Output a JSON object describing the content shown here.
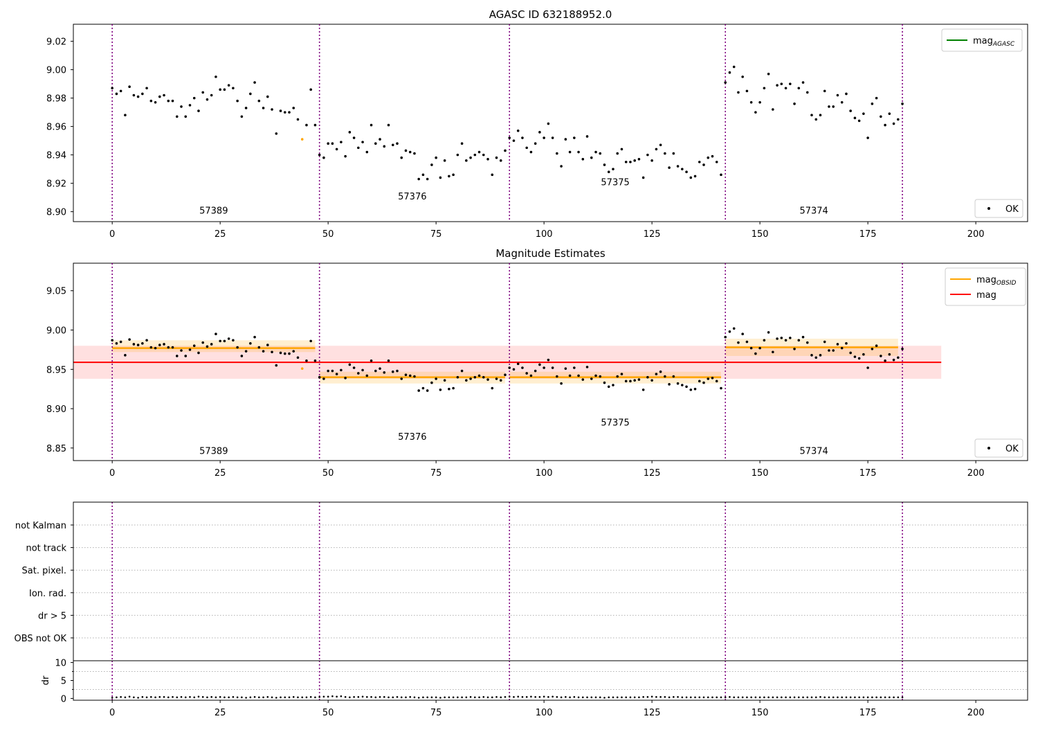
{
  "chart_data": [
    {
      "type": "scatter",
      "title": "AGASC ID 632188952.0",
      "xlim": [
        -9,
        212
      ],
      "ylim": [
        8.893,
        9.032
      ],
      "xticks": [
        0,
        25,
        50,
        75,
        100,
        125,
        150,
        175,
        200
      ],
      "yticks": [
        8.9,
        8.92,
        8.94,
        8.96,
        8.98,
        9.0,
        9.02
      ],
      "ytick_labels": [
        "8.90",
        "8.92",
        "8.94",
        "8.96",
        "8.98",
        "9.00",
        "9.02"
      ],
      "obs_boundaries": [
        0,
        48,
        92,
        142,
        183
      ],
      "obs_labels": [
        {
          "text": "57389",
          "x": 23.5,
          "y": 8.8985
        },
        {
          "text": "57376",
          "x": 69.5,
          "y": 8.9085
        },
        {
          "text": "57375",
          "x": 116.5,
          "y": 8.9185
        },
        {
          "text": "57374",
          "x": 162.5,
          "y": 8.8985
        }
      ],
      "legend_top": {
        "position": "top-right",
        "entries": [
          {
            "label": "mag",
            "sub": "AGASC",
            "color": "#008000"
          }
        ]
      },
      "legend_bottom": {
        "position": "bottom-right",
        "entries": [
          {
            "label": "OK",
            "marker": "dot",
            "color": "#000000"
          }
        ]
      },
      "highlighted_points": [
        {
          "x": 44,
          "y": 8.951,
          "color": "#ffa500"
        }
      ],
      "mag_values": [
        8.987,
        8.983,
        8.985,
        8.968,
        8.988,
        8.982,
        8.981,
        8.983,
        8.987,
        8.978,
        8.977,
        8.981,
        8.982,
        8.978,
        8.978,
        8.967,
        8.974,
        8.967,
        8.975,
        8.98,
        8.971,
        8.984,
        8.979,
        8.982,
        8.995,
        8.986,
        8.986,
        8.989,
        8.987,
        8.978,
        8.967,
        8.973,
        8.983,
        8.991,
        8.978,
        8.973,
        8.981,
        8.972,
        8.955,
        8.971,
        8.97,
        8.97,
        8.973,
        8.965,
        8.951,
        8.961,
        8.986,
        8.961,
        8.94,
        8.938,
        8.948,
        8.948,
        8.944,
        8.949,
        8.939,
        8.956,
        8.952,
        8.945,
        8.949,
        8.942,
        8.961,
        8.948,
        8.951,
        8.946,
        8.961,
        8.947,
        8.948,
        8.938,
        8.943,
        8.942,
        8.941,
        8.923,
        8.926,
        8.923,
        8.933,
        8.938,
        8.924,
        8.936,
        8.925,
        8.926,
        8.94,
        8.948,
        8.936,
        8.938,
        8.94,
        8.942,
        8.94,
        8.937,
        8.926,
        8.938,
        8.936,
        8.943,
        8.952,
        8.95,
        8.957,
        8.952,
        8.945,
        8.942,
        8.948,
        8.956,
        8.952,
        8.962,
        8.952,
        8.941,
        8.932,
        8.951,
        8.942,
        8.952,
        8.942,
        8.937,
        8.953,
        8.938,
        8.942,
        8.941,
        8.933,
        8.928,
        8.93,
        8.941,
        8.944,
        8.935,
        8.935,
        8.936,
        8.937,
        8.924,
        8.94,
        8.936,
        8.944,
        8.947,
        8.941,
        8.931,
        8.941,
        8.932,
        8.93,
        8.928,
        8.924,
        8.925,
        8.935,
        8.933,
        8.938,
        8.939,
        8.935,
        8.926,
        8.991,
        8.998,
        9.002,
        8.984,
        8.995,
        8.985,
        8.977,
        8.97,
        8.977,
        8.987,
        8.997,
        8.972,
        8.989,
        8.99,
        8.987,
        8.99,
        8.976,
        8.987,
        8.991,
        8.984,
        8.968,
        8.965,
        8.968,
        8.985,
        8.974,
        8.974,
        8.982,
        8.977,
        8.983,
        8.971,
        8.966,
        8.964,
        8.969,
        8.952,
        8.976,
        8.98,
        8.967,
        8.961,
        8.969,
        8.962,
        8.965,
        8.976
      ]
    },
    {
      "type": "scatter",
      "title": "Magnitude Estimates",
      "xlim": [
        -9,
        212
      ],
      "ylim": [
        8.834,
        9.085
      ],
      "xticks": [
        0,
        25,
        50,
        75,
        100,
        125,
        150,
        175,
        200
      ],
      "yticks": [
        8.85,
        8.9,
        8.95,
        9.0,
        9.05
      ],
      "ytick_labels": [
        "8.85",
        "8.90",
        "8.95",
        "9.00",
        "9.05"
      ],
      "obs_boundaries": [
        0,
        48,
        92,
        142,
        183
      ],
      "obs_labels": [
        {
          "text": "57389",
          "x": 23.5,
          "y": 8.8425
        },
        {
          "text": "57376",
          "x": 69.5,
          "y": 8.8605
        },
        {
          "text": "57375",
          "x": 116.5,
          "y": 8.8785
        },
        {
          "text": "57374",
          "x": 162.5,
          "y": 8.8425
        }
      ],
      "mag_overall": {
        "value": 8.959,
        "band": [
          8.938,
          8.98
        ],
        "x_range": [
          -9,
          192
        ],
        "color": "#ff0000"
      },
      "mag_obsid": [
        {
          "x_range": [
            0,
            47
          ],
          "value": 8.977,
          "band": [
            8.972,
            8.987
          ]
        },
        {
          "x_range": [
            48,
            91
          ],
          "value": 8.94,
          "band": [
            8.932,
            8.947
          ]
        },
        {
          "x_range": [
            92,
            141
          ],
          "value": 8.94,
          "band": [
            8.932,
            8.947
          ]
        },
        {
          "x_range": [
            142,
            182
          ],
          "value": 8.978,
          "band": [
            8.967,
            8.989
          ]
        }
      ],
      "legend_top": {
        "position": "top-right",
        "entries": [
          {
            "label": "mag",
            "sub": "OBSID",
            "color": "#ffa500"
          },
          {
            "label": "mag",
            "sub": "",
            "color": "#ff0000"
          }
        ]
      },
      "legend_bottom": {
        "position": "bottom-right",
        "entries": [
          {
            "label": "OK",
            "marker": "dot",
            "color": "#000000"
          }
        ]
      }
    },
    {
      "type": "scatter",
      "title": "",
      "xlim": [
        -9,
        212
      ],
      "categories": [
        "OBS not OK",
        "dr > 5",
        "Ion. rad.",
        "Sat. pixel.",
        "not track",
        "not Kalman"
      ],
      "obs_boundaries": [
        0,
        48,
        92,
        142,
        183
      ]
    },
    {
      "type": "scatter",
      "title": "",
      "xlim": [
        -9,
        212
      ],
      "ylim": [
        -0.5,
        10.5
      ],
      "yticks": [
        0,
        5,
        10
      ],
      "ytick_labels": [
        "0",
        "5",
        "10"
      ],
      "xticks": [
        0,
        25,
        50,
        75,
        100,
        125,
        150,
        175,
        200
      ],
      "ylabel": "dr",
      "obs_boundaries": [
        0,
        48,
        92,
        142,
        183
      ],
      "dr_values": [
        0.2,
        0.3,
        0.4,
        0.3,
        0.5,
        0.3,
        0.2,
        0.4,
        0.3,
        0.4,
        0.3,
        0.4,
        0.4,
        0.3,
        0.4,
        0.3,
        0.4,
        0.3,
        0.4,
        0.3,
        0.5,
        0.4,
        0.3,
        0.4,
        0.3,
        0.4,
        0.3,
        0.3,
        0.4,
        0.3,
        0.3,
        0.2,
        0.3,
        0.4,
        0.3,
        0.3,
        0.4,
        0.3,
        0.2,
        0.3,
        0.3,
        0.3,
        0.4,
        0.3,
        0.3,
        0.3,
        0.4,
        0.3,
        0.4,
        0.5,
        0.5,
        0.6,
        0.5,
        0.6,
        0.4,
        0.3,
        0.4,
        0.4,
        0.5,
        0.4,
        0.4,
        0.3,
        0.4,
        0.4,
        0.3,
        0.3,
        0.4,
        0.3,
        0.3,
        0.4,
        0.3,
        0.2,
        0.3,
        0.3,
        0.3,
        0.3,
        0.2,
        0.3,
        0.3,
        0.3,
        0.3,
        0.3,
        0.3,
        0.4,
        0.3,
        0.3,
        0.4,
        0.3,
        0.3,
        0.4,
        0.3,
        0.4,
        0.5,
        0.4,
        0.5,
        0.4,
        0.4,
        0.5,
        0.4,
        0.4,
        0.5,
        0.4,
        0.5,
        0.4,
        0.3,
        0.4,
        0.3,
        0.4,
        0.3,
        0.3,
        0.3,
        0.3,
        0.3,
        0.3,
        0.2,
        0.3,
        0.3,
        0.3,
        0.3,
        0.3,
        0.3,
        0.3,
        0.3,
        0.4,
        0.4,
        0.5,
        0.4,
        0.4,
        0.4,
        0.3,
        0.4,
        0.4,
        0.3,
        0.3,
        0.3,
        0.3,
        0.3,
        0.3,
        0.3,
        0.3,
        0.3,
        0.3,
        0.3,
        0.4,
        0.3,
        0.3,
        0.3,
        0.3,
        0.3,
        0.3,
        0.3,
        0.3,
        0.3,
        0.3,
        0.3,
        0.3,
        0.3,
        0.3,
        0.3,
        0.3,
        0.3,
        0.3,
        0.3,
        0.3,
        0.4,
        0.3,
        0.3,
        0.3,
        0.3,
        0.3,
        0.3,
        0.3,
        0.3,
        0.3,
        0.3,
        0.3,
        0.3,
        0.3,
        0.3,
        0.3,
        0.3,
        0.3,
        0.3,
        0.3
      ]
    }
  ]
}
